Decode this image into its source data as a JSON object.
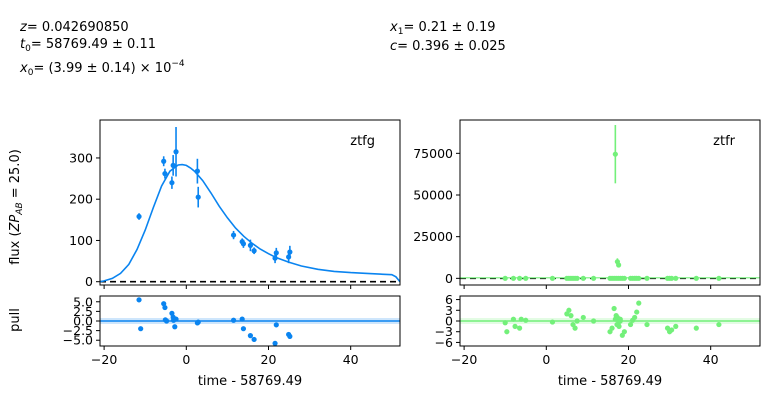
{
  "params": {
    "z_text": "= 0.042690850",
    "t0_text": "= 58769.49 ± 0.11",
    "x0_text": "= (3.99 ± 0.14) × 10",
    "x0_exp": "−4",
    "x1_text": "= 0.21 ± 0.19",
    "c_text": "= 0.396 ± 0.025"
  },
  "colors": {
    "ztfg": "#0a84f0",
    "ztfr": "#73f07a",
    "zero_line": "#000000"
  },
  "chart_data": [
    {
      "type": "scatter",
      "band": "ztfg",
      "legend": "ztfg",
      "xlabel": "time - 58769.49",
      "ylabel": "flux (ZP_AB = 25.0)",
      "xlim": [
        -21,
        52
      ],
      "ylim": [
        -8,
        392
      ],
      "xticks": [
        -20,
        0,
        20,
        40
      ],
      "yticks": [
        0,
        100,
        200,
        300
      ],
      "points": [
        {
          "x": -11.5,
          "y": 158,
          "err": 8
        },
        {
          "x": -5.5,
          "y": 292,
          "err": 12
        },
        {
          "x": -5.2,
          "y": 262,
          "err": 12
        },
        {
          "x": -3.5,
          "y": 240,
          "err": 15
        },
        {
          "x": -3.2,
          "y": 282,
          "err": 25
        },
        {
          "x": -2.5,
          "y": 315,
          "err": 60
        },
        {
          "x": 2.7,
          "y": 268,
          "err": 30
        },
        {
          "x": 2.9,
          "y": 205,
          "err": 25
        },
        {
          "x": 11.5,
          "y": 113,
          "err": 10
        },
        {
          "x": 13.6,
          "y": 97,
          "err": 8
        },
        {
          "x": 13.9,
          "y": 92,
          "err": 10
        },
        {
          "x": 15.6,
          "y": 88,
          "err": 14
        },
        {
          "x": 16.5,
          "y": 75,
          "err": 8
        },
        {
          "x": 21.6,
          "y": 57,
          "err": 12
        },
        {
          "x": 21.9,
          "y": 70,
          "err": 12
        },
        {
          "x": 24.9,
          "y": 60,
          "err": 15
        },
        {
          "x": 25.2,
          "y": 72,
          "err": 15
        }
      ],
      "model_x": [
        -21,
        -20,
        -18,
        -16,
        -14,
        -12,
        -10,
        -8,
        -6,
        -4,
        -2,
        -1,
        0,
        1,
        2,
        4,
        6,
        8,
        10,
        12,
        14,
        16,
        18,
        20,
        22,
        25,
        28,
        32,
        36,
        40,
        44,
        48,
        50,
        51,
        52
      ],
      "model_y": [
        0,
        2,
        8,
        20,
        42,
        78,
        125,
        180,
        232,
        268,
        283,
        284,
        282,
        276,
        268,
        245,
        215,
        183,
        155,
        130,
        110,
        93,
        79,
        68,
        58,
        47,
        38,
        30,
        25,
        22,
        20,
        18,
        17,
        12,
        0
      ],
      "pull": {
        "ylim": [
          -6.5,
          6.5
        ],
        "yticks": [
          5.0,
          2.5,
          0.0,
          -2.5,
          -5.0
        ],
        "ytick_labels": [
          "5.0",
          "2.5",
          "0.0",
          "−2.5",
          "−5.0"
        ],
        "values": [
          5.5,
          4.5,
          3.5,
          2.0,
          1.0,
          0.5,
          -0.5,
          -0.3,
          0.2,
          0.5,
          -2.0,
          -3.8,
          -4.8,
          -5.8,
          -1.0,
          -3.5,
          -4.0,
          -2.0,
          0.3,
          0.0,
          0.2,
          -1.5
        ]
      }
    },
    {
      "type": "scatter",
      "band": "ztfr",
      "legend": "ztfr",
      "xlabel": "time - 58769.49",
      "xlim": [
        -21,
        52
      ],
      "ylim": [
        -4000,
        95000
      ],
      "xticks": [
        -20,
        0,
        20,
        40
      ],
      "yticks": [
        0,
        25000,
        50000,
        75000
      ],
      "points": [
        {
          "x": 16.8,
          "y": 74500,
          "err": 17500
        },
        {
          "x": 17.3,
          "y": 10000,
          "err": 2000
        },
        {
          "x": 17.6,
          "y": 8000,
          "err": 1500
        },
        {
          "x": -10,
          "y": 0,
          "err": 800
        },
        {
          "x": -8,
          "y": 0,
          "err": 800
        },
        {
          "x": -6.5,
          "y": 0,
          "err": 800
        },
        {
          "x": -5,
          "y": 0,
          "err": 800
        },
        {
          "x": 1.5,
          "y": 0,
          "err": 800
        },
        {
          "x": 5,
          "y": 0,
          "err": 800
        },
        {
          "x": 5.5,
          "y": 0,
          "err": 800
        },
        {
          "x": 6,
          "y": 0,
          "err": 800
        },
        {
          "x": 6.5,
          "y": 0,
          "err": 800
        },
        {
          "x": 7,
          "y": 0,
          "err": 800
        },
        {
          "x": 7.5,
          "y": 0,
          "err": 800
        },
        {
          "x": 9,
          "y": 0,
          "err": 800
        },
        {
          "x": 11.5,
          "y": 0,
          "err": 800
        },
        {
          "x": 15.5,
          "y": 0,
          "err": 800
        },
        {
          "x": 16,
          "y": 0,
          "err": 800
        },
        {
          "x": 16.5,
          "y": 0,
          "err": 800
        },
        {
          "x": 17,
          "y": 0,
          "err": 800
        },
        {
          "x": 17.5,
          "y": 0,
          "err": 800
        },
        {
          "x": 18,
          "y": 0,
          "err": 800
        },
        {
          "x": 18.5,
          "y": 0,
          "err": 800
        },
        {
          "x": 19,
          "y": 0,
          "err": 800
        },
        {
          "x": 20.5,
          "y": 0,
          "err": 800
        },
        {
          "x": 21,
          "y": 0,
          "err": 800
        },
        {
          "x": 21.5,
          "y": 0,
          "err": 800
        },
        {
          "x": 22,
          "y": 0,
          "err": 800
        },
        {
          "x": 22.5,
          "y": 0,
          "err": 800
        },
        {
          "x": 24.5,
          "y": 0,
          "err": 800
        },
        {
          "x": 29.5,
          "y": 0,
          "err": 800
        },
        {
          "x": 30,
          "y": 0,
          "err": 800
        },
        {
          "x": 30.5,
          "y": 0,
          "err": 800
        },
        {
          "x": 31.5,
          "y": 0,
          "err": 800
        },
        {
          "x": 36.5,
          "y": 0,
          "err": 800
        },
        {
          "x": 42,
          "y": 0,
          "err": 800
        }
      ],
      "pull": {
        "ylim": [
          -7,
          7
        ],
        "yticks": [
          6,
          3,
          0,
          -3,
          -6
        ],
        "ytick_labels": [
          "6",
          "3",
          "0",
          "−3",
          "−6"
        ],
        "values": [
          0.5,
          1.0,
          0.0,
          -0.5,
          0.5,
          -2.0,
          0.2,
          -0.3,
          2.0,
          3.0,
          1.5,
          -1.0,
          -2.0,
          0.0,
          1.0,
          0.0,
          -3.0,
          -2.0,
          3.5,
          1.5,
          -1.0,
          0.5,
          -4.0,
          -3.0,
          -1.0,
          0.2,
          1.0,
          2.5,
          5.0,
          -1.0,
          -2.0,
          -3.0,
          -2.5,
          -1.5,
          -2.0,
          -1.0,
          -1.0,
          -1.5,
          0.0,
          -3.0,
          -1.5,
          0.5
        ]
      }
    }
  ]
}
